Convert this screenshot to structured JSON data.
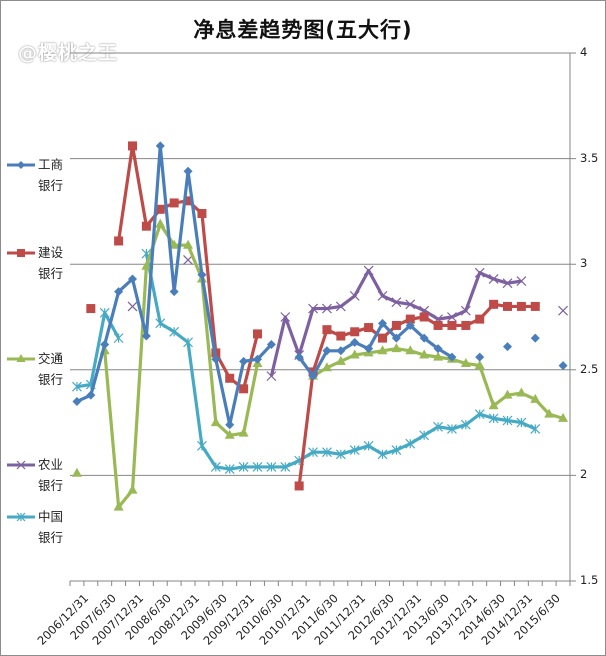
{
  "title": "净息差趋势图(五大行)",
  "watermark": "@樱桃之王",
  "chart_data": {
    "type": "line",
    "title": "净息差趋势图(五大行)",
    "xlabel": "",
    "ylabel": "",
    "ylim": [
      1.5,
      4
    ],
    "y_axis_position": "right",
    "y_ticks": [
      "4",
      "3.5",
      "3",
      "2.5",
      "2",
      "1.5"
    ],
    "grid": true,
    "legend_position": "left",
    "categories": [
      "2006/12/31",
      "2007/3/31",
      "2007/6/30",
      "2007/9/30",
      "2007/12/31",
      "2008/3/31",
      "2008/6/30",
      "2008/9/30",
      "2008/12/31",
      "2009/3/31",
      "2009/6/30",
      "2009/9/30",
      "2009/12/31",
      "2010/3/31",
      "2010/6/30",
      "2010/9/30",
      "2010/12/31",
      "2011/3/31",
      "2011/6/30",
      "2011/9/30",
      "2011/12/31",
      "2012/3/31",
      "2012/6/30",
      "2012/9/30",
      "2012/12/31",
      "2013/3/31",
      "2013/6/30",
      "2013/9/30",
      "2013/12/31",
      "2014/3/31",
      "2014/6/30",
      "2014/9/30",
      "2014/12/31",
      "2015/3/31",
      "2015/6/30",
      "2015/9/30"
    ],
    "x_tick_labels": [
      "2006/12/31",
      "2007/6/30",
      "2007/12/31",
      "2008/6/30",
      "2008/12/31",
      "2009/6/30",
      "2009/12/31",
      "2010/6/30",
      "2010/12/31",
      "2011/6/30",
      "2011/12/31",
      "2012/6/30",
      "2012/12/31",
      "2013/6/30",
      "2013/12/31",
      "2014/6/30",
      "2014/12/31",
      "2015/6/30"
    ],
    "series": [
      {
        "name": "工商银行",
        "color": "#4a7ebb",
        "marker": "diamond",
        "values": [
          2.35,
          2.38,
          2.62,
          2.87,
          2.93,
          2.66,
          3.56,
          2.87,
          3.44,
          2.95,
          2.55,
          2.24,
          2.54,
          2.55,
          2.62,
          null,
          2.56,
          2.47,
          2.59,
          2.59,
          2.63,
          2.6,
          2.72,
          2.65,
          2.71,
          2.65,
          2.6,
          2.56,
          null,
          2.56,
          null,
          2.61,
          null,
          2.65,
          null,
          2.52
        ]
      },
      {
        "name": "建设银行",
        "color": "#be4b48",
        "marker": "square",
        "values": [
          null,
          2.79,
          null,
          3.11,
          3.56,
          3.18,
          3.26,
          3.29,
          3.3,
          3.24,
          2.58,
          2.46,
          2.41,
          2.67,
          null,
          null,
          1.95,
          2.49,
          2.69,
          2.66,
          2.68,
          2.7,
          2.65,
          2.71,
          2.74,
          2.75,
          2.71,
          2.71,
          2.71,
          2.74,
          2.81,
          2.8,
          2.8,
          2.8,
          null,
          null
        ]
      },
      {
        "name": "交通银行",
        "color": "#98b954",
        "marker": "triangle",
        "values": [
          2.01,
          null,
          2.59,
          1.85,
          1.93,
          2.99,
          3.19,
          3.09,
          3.09,
          2.93,
          2.25,
          2.19,
          2.2,
          2.53,
          null,
          null,
          null,
          2.47,
          2.51,
          2.54,
          2.57,
          2.58,
          2.59,
          2.6,
          2.59,
          2.57,
          2.56,
          2.55,
          2.53,
          2.52,
          2.33,
          2.38,
          2.39,
          2.36,
          2.29,
          2.27
        ]
      },
      {
        "name": "农业银行",
        "color": "#7d60a0",
        "marker": "x",
        "values": [
          null,
          null,
          null,
          null,
          2.8,
          null,
          null,
          null,
          3.02,
          null,
          null,
          null,
          null,
          null,
          2.47,
          2.75,
          2.57,
          2.79,
          2.79,
          2.8,
          2.85,
          2.97,
          2.85,
          2.82,
          2.81,
          2.78,
          2.74,
          2.75,
          2.78,
          2.96,
          2.93,
          2.91,
          2.92,
          null,
          null,
          2.78
        ]
      },
      {
        "name": "中国银行",
        "color": "#46aac5",
        "marker": "asterisk",
        "values": [
          2.42,
          2.43,
          2.77,
          2.65,
          null,
          3.05,
          2.72,
          2.68,
          2.63,
          2.14,
          2.04,
          2.03,
          2.04,
          2.04,
          2.04,
          2.04,
          2.07,
          2.11,
          2.11,
          2.1,
          2.12,
          2.14,
          2.1,
          2.12,
          2.15,
          2.19,
          2.23,
          2.22,
          2.24,
          2.29,
          2.27,
          2.26,
          2.25,
          2.22,
          null,
          null
        ]
      }
    ]
  }
}
